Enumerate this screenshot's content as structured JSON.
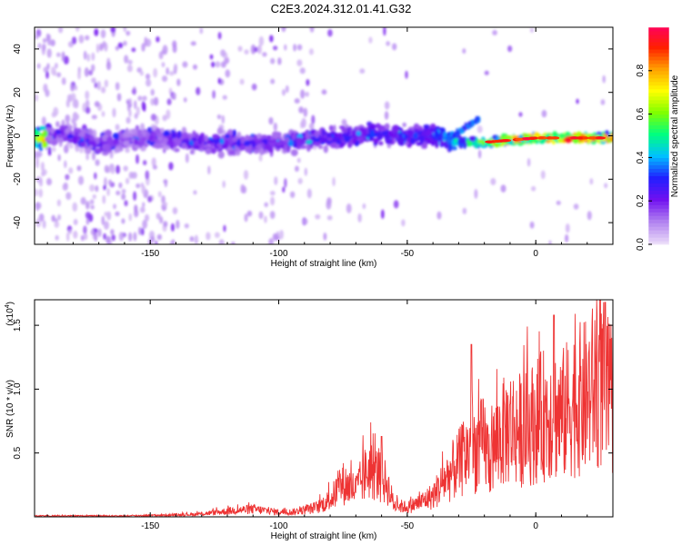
{
  "title": "C2E3.2024.312.01.41.G32",
  "chart_data": [
    {
      "type": "heatmap",
      "xlabel": "Height of straight line (km)",
      "ylabel": "Frequency (Hz)",
      "xlim": [
        -195,
        30
      ],
      "ylim": [
        -50,
        50
      ],
      "x_ticks": [
        -150,
        -100,
        -50,
        0
      ],
      "y_ticks": [
        -40,
        -20,
        0,
        20,
        40
      ],
      "colorbar": {
        "label": "Normalized spectral amplitude",
        "range": [
          0,
          1
        ],
        "ticks": [
          0.0,
          0.2,
          0.4,
          0.6,
          0.8
        ],
        "tick_labels": [
          "0.0",
          "0.2",
          "0.4",
          "0.6",
          "0.8"
        ],
        "colormap": [
          "#e8d8f8",
          "#b080f0",
          "#7010f0",
          "#2020ff",
          "#00c0ff",
          "#00ff80",
          "#80ff00",
          "#ffff00",
          "#ffa000",
          "#ff2000",
          "#ff0060"
        ]
      },
      "ridge": [
        {
          "x": -190,
          "freq": 0,
          "amp": 0.2
        },
        {
          "x": -180,
          "freq": 0,
          "amp": 0.22
        },
        {
          "x": -170,
          "freq": -4,
          "amp": 0.22
        },
        {
          "x": -160,
          "freq": -2,
          "amp": 0.18
        },
        {
          "x": -150,
          "freq": -1,
          "amp": 0.18
        },
        {
          "x": -140,
          "freq": -2,
          "amp": 0.22
        },
        {
          "x": -130,
          "freq": -3,
          "amp": 0.25
        },
        {
          "x": -120,
          "freq": -3,
          "amp": 0.25
        },
        {
          "x": -110,
          "freq": -4,
          "amp": 0.25
        },
        {
          "x": -100,
          "freq": -3,
          "amp": 0.25
        },
        {
          "x": -90,
          "freq": -2,
          "amp": 0.28
        },
        {
          "x": -80,
          "freq": -1,
          "amp": 0.3
        },
        {
          "x": -70,
          "freq": 0,
          "amp": 0.3
        },
        {
          "x": -60,
          "freq": 1,
          "amp": 0.3
        },
        {
          "x": -50,
          "freq": 0,
          "amp": 0.3
        },
        {
          "x": -40,
          "freq": 0,
          "amp": 0.35
        },
        {
          "x": -30,
          "freq": -3,
          "amp": 0.5
        },
        {
          "x": -20,
          "freq": -3,
          "amp": 0.7
        },
        {
          "x": -10,
          "freq": -2,
          "amp": 0.95
        },
        {
          "x": 0,
          "freq": -1,
          "amp": 0.9
        },
        {
          "x": 10,
          "freq": -1,
          "amp": 0.95
        },
        {
          "x": 20,
          "freq": -1,
          "amp": 0.95
        },
        {
          "x": 28,
          "freq": -1,
          "amp": 0.9
        }
      ]
    },
    {
      "type": "line",
      "xlabel": "Height of straight line (km)",
      "ylabel": "SNR (10 * v/v)",
      "y_multiplier_label": "(x10",
      "y_multiplier_exponent": "4",
      "xlim": [
        -195,
        30
      ],
      "ylim": [
        0,
        1.7
      ],
      "x_ticks": [
        -150,
        -100,
        -50,
        0
      ],
      "y_ticks": [
        0.5,
        1.0,
        1.5
      ],
      "y_tick_labels": [
        "0.5",
        "1.0",
        "1.5"
      ],
      "color": "#ee3333",
      "series": [
        {
          "x": [
            -195,
            -180,
            -160,
            -140,
            -130,
            -120,
            -110,
            -100,
            -95,
            -90,
            -85,
            -80,
            -75,
            -70,
            -65,
            -62,
            -58,
            -55,
            -50,
            -45,
            -40,
            -35,
            -30,
            -27,
            -25,
            -23,
            -20,
            -18,
            -15,
            -10,
            -5,
            0,
            5,
            10,
            15,
            20,
            25,
            28,
            30
          ],
          "y": [
            0.01,
            0.01,
            0.01,
            0.02,
            0.03,
            0.06,
            0.08,
            0.05,
            0.05,
            0.07,
            0.1,
            0.18,
            0.35,
            0.28,
            0.5,
            0.45,
            0.35,
            0.12,
            0.1,
            0.15,
            0.22,
            0.4,
            0.55,
            0.65,
            0.72,
            0.7,
            0.78,
            0.6,
            0.8,
            0.95,
            0.9,
            1.0,
            1.1,
            1.05,
            1.2,
            1.25,
            1.45,
            1.25,
            1.15
          ]
        }
      ],
      "peaks": [
        {
          "x": -60,
          "y": 0.63
        },
        {
          "x": -25,
          "y": 1.35
        },
        {
          "x": 7,
          "y": 1.58
        },
        {
          "x": 27,
          "y": 1.68
        }
      ]
    }
  ]
}
